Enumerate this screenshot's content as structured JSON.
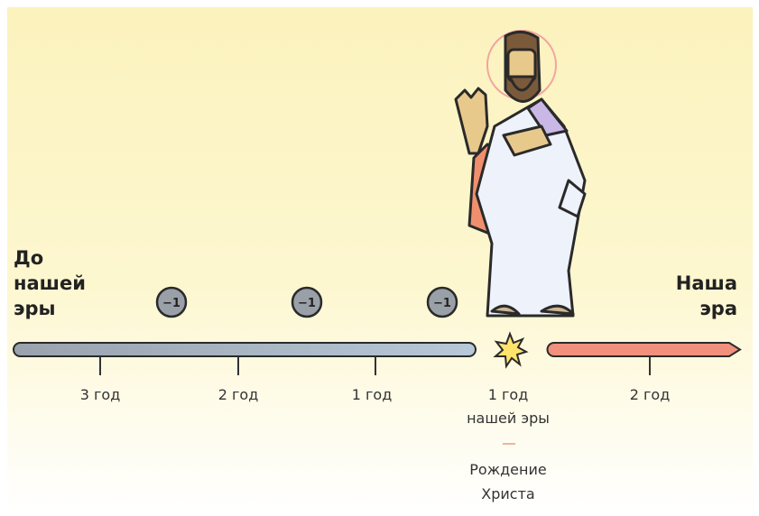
{
  "left_label": [
    "До",
    "нашей",
    "эры"
  ],
  "right_label": [
    "Наша",
    "эра"
  ],
  "badges": [
    "−1",
    "−1",
    "−1"
  ],
  "ticks": [
    "3 год",
    "2 год",
    "1 год",
    "1 год",
    "2 год"
  ],
  "tick_subtitle": "нашей эры",
  "birth_label": [
    "Рождение",
    "Христа"
  ]
}
